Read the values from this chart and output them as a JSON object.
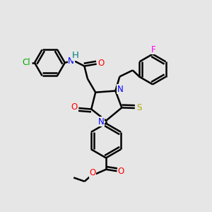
{
  "background_color": "#e6e6e6",
  "atom_colors": {
    "N": "#0000FF",
    "O": "#FF0000",
    "S": "#AAAA00",
    "Cl": "#00AA00",
    "F": "#FF00FF",
    "H": "#008080",
    "C": "#000000"
  },
  "bond_color": "#000000",
  "bond_width": 1.8,
  "font_size": 8.5
}
